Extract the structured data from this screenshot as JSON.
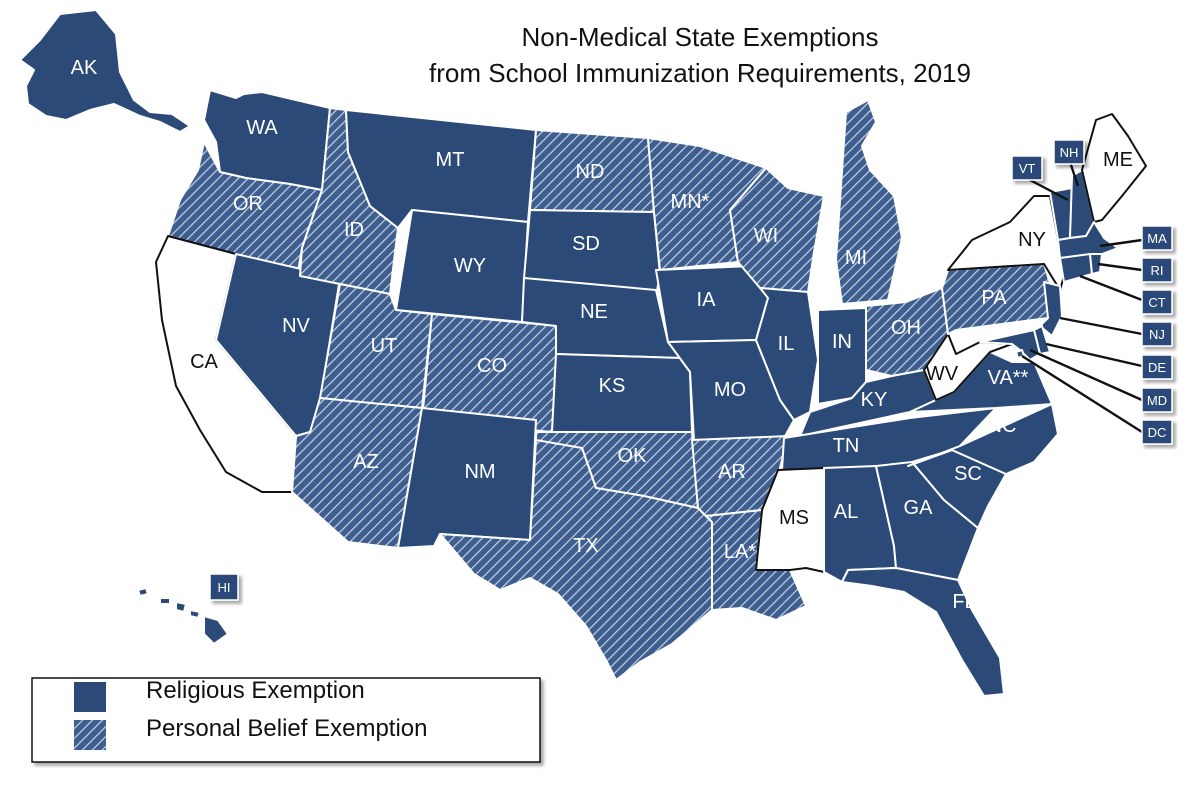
{
  "title": {
    "line1": "Non-Medical State Exemptions",
    "line2": "from School Immunization Requirements, 2019"
  },
  "colors": {
    "religious": "#2b4a78",
    "personal_belief_base": "#3d5e8e",
    "personal_belief_stripe": "#c7d2e3",
    "none": "#ffffff",
    "border": "#ffffff",
    "outline": "#111111"
  },
  "legend": {
    "religious": "Religious Exemption",
    "personal": "Personal Belief Exemption"
  },
  "states": {
    "AK": {
      "label": "AK",
      "exemption": "religious"
    },
    "HI": {
      "label": "HI",
      "exemption": "religious"
    },
    "WA": {
      "label": "WA",
      "exemption": "religious"
    },
    "OR": {
      "label": "OR",
      "exemption": "personal"
    },
    "CA": {
      "label": "CA",
      "exemption": "none"
    },
    "NV": {
      "label": "NV",
      "exemption": "religious"
    },
    "ID": {
      "label": "ID",
      "exemption": "personal"
    },
    "MT": {
      "label": "MT",
      "exemption": "religious"
    },
    "WY": {
      "label": "WY",
      "exemption": "religious"
    },
    "UT": {
      "label": "UT",
      "exemption": "personal"
    },
    "CO": {
      "label": "CO",
      "exemption": "personal"
    },
    "AZ": {
      "label": "AZ",
      "exemption": "personal"
    },
    "NM": {
      "label": "NM",
      "exemption": "religious"
    },
    "ND": {
      "label": "ND",
      "exemption": "personal"
    },
    "SD": {
      "label": "SD",
      "exemption": "religious"
    },
    "NE": {
      "label": "NE",
      "exemption": "religious"
    },
    "KS": {
      "label": "KS",
      "exemption": "religious"
    },
    "OK": {
      "label": "OK",
      "exemption": "personal"
    },
    "TX": {
      "label": "TX",
      "exemption": "personal"
    },
    "MN": {
      "label": "MN*",
      "exemption": "personal"
    },
    "IA": {
      "label": "IA",
      "exemption": "religious"
    },
    "MO": {
      "label": "MO",
      "exemption": "religious"
    },
    "AR": {
      "label": "AR",
      "exemption": "personal"
    },
    "LA": {
      "label": "LA*",
      "exemption": "personal"
    },
    "WI": {
      "label": "WI",
      "exemption": "personal"
    },
    "IL": {
      "label": "IL",
      "exemption": "religious"
    },
    "MI": {
      "label": "MI",
      "exemption": "personal"
    },
    "IN": {
      "label": "IN",
      "exemption": "religious"
    },
    "OH": {
      "label": "OH",
      "exemption": "personal"
    },
    "KY": {
      "label": "KY",
      "exemption": "religious"
    },
    "TN": {
      "label": "TN",
      "exemption": "religious"
    },
    "MS": {
      "label": "MS",
      "exemption": "none"
    },
    "AL": {
      "label": "AL",
      "exemption": "religious"
    },
    "GA": {
      "label": "GA",
      "exemption": "religious"
    },
    "FL": {
      "label": "FL",
      "exemption": "religious"
    },
    "SC": {
      "label": "SC",
      "exemption": "religious"
    },
    "NC": {
      "label": "NC",
      "exemption": "religious"
    },
    "VA": {
      "label": "VA**",
      "exemption": "religious"
    },
    "WV": {
      "label": "WV",
      "exemption": "none"
    },
    "PA": {
      "label": "PA",
      "exemption": "personal"
    },
    "NY": {
      "label": "NY",
      "exemption": "none"
    },
    "VT": {
      "label": "VT",
      "exemption": "religious"
    },
    "NH": {
      "label": "NH",
      "exemption": "religious"
    },
    "ME": {
      "label": "ME",
      "exemption": "none"
    },
    "MA": {
      "label": "MA",
      "exemption": "religious"
    },
    "RI": {
      "label": "RI",
      "exemption": "religious"
    },
    "CT": {
      "label": "CT",
      "exemption": "religious"
    },
    "NJ": {
      "label": "NJ",
      "exemption": "religious"
    },
    "DE": {
      "label": "DE",
      "exemption": "religious"
    },
    "MD": {
      "label": "MD",
      "exemption": "religious"
    },
    "DC": {
      "label": "DC",
      "exemption": "religious"
    }
  }
}
